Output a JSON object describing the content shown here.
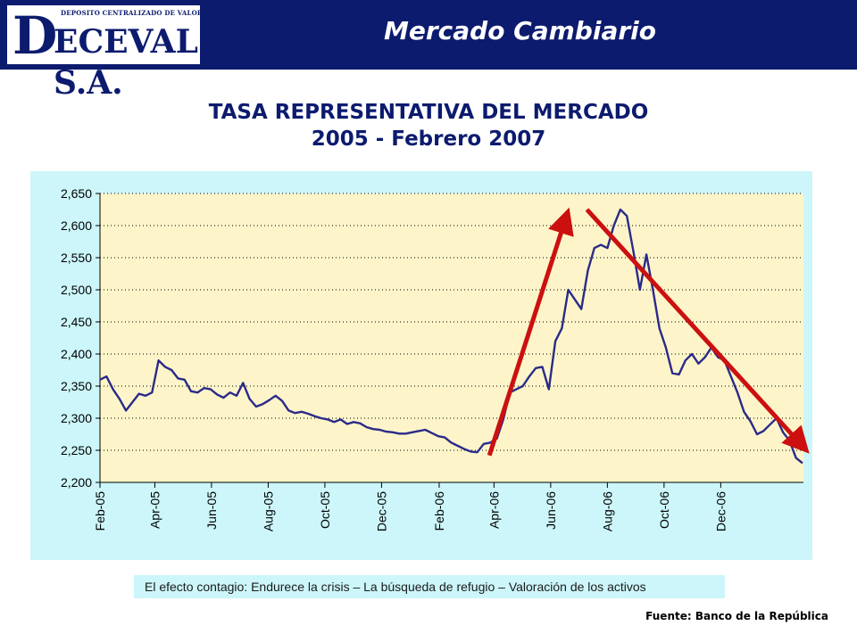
{
  "header": {
    "logo_small": "DEPOSITO CENTRALIZADO DE VALORES DE COLOMBIA",
    "logo_d": "D",
    "logo_text": "ECEVAL S.A.",
    "title": "Mercado Cambiario"
  },
  "titles": {
    "line1": "TASA REPRESENTATIVA DEL MERCADO",
    "line2": "2005 - Febrero 2007"
  },
  "note": "El efecto contagio: Endurece la crisis – La búsqueda de refugio – Valoración de los activos",
  "source": "Fuente: Banco de la República",
  "colors": {
    "header_bg": "#0c1b6e",
    "plot_bg": "#fdf5c9",
    "chart_bg": "#ccf6fa",
    "series": "#2b2a8a",
    "arrow": "#cc1010"
  },
  "chart_data": {
    "type": "line",
    "ylim": [
      2200,
      2650
    ],
    "y_ticks": [
      2200,
      2250,
      2300,
      2350,
      2400,
      2450,
      2500,
      2550,
      2600,
      2650
    ],
    "y_tick_labels": [
      "2,200",
      "2,250",
      "2,300",
      "2,350",
      "2,400",
      "2,450",
      "2,500",
      "2,550",
      "2,600",
      "2,650"
    ],
    "x_tick_labels": [
      "Feb-05",
      "Apr-05",
      "Jun-05",
      "Aug-05",
      "Oct-05",
      "Dec-05",
      "Feb-06",
      "Apr-06",
      "Jun-06",
      "Aug-06",
      "Oct-06",
      "Dec-06"
    ],
    "grid": true,
    "series": [
      {
        "x": [
          "2005-02-01",
          "2005-02-08",
          "2005-02-15",
          "2005-02-22",
          "2005-03-01",
          "2005-03-08",
          "2005-03-15",
          "2005-03-22",
          "2005-03-29",
          "2005-04-05",
          "2005-04-12",
          "2005-04-19",
          "2005-04-26",
          "2005-05-03",
          "2005-05-10",
          "2005-05-17",
          "2005-05-24",
          "2005-05-31",
          "2005-06-07",
          "2005-06-14",
          "2005-06-21",
          "2005-06-28",
          "2005-07-05",
          "2005-07-12",
          "2005-07-19",
          "2005-07-26",
          "2005-08-02",
          "2005-08-09",
          "2005-08-16",
          "2005-08-23",
          "2005-08-30",
          "2005-09-06",
          "2005-09-13",
          "2005-09-20",
          "2005-09-27",
          "2005-10-04",
          "2005-10-11",
          "2005-10-18",
          "2005-10-25",
          "2005-11-01",
          "2005-11-08",
          "2005-11-15",
          "2005-11-22",
          "2005-11-29",
          "2005-12-06",
          "2005-12-13",
          "2005-12-20",
          "2005-12-27",
          "2006-01-03",
          "2006-01-10",
          "2006-01-17",
          "2006-01-24",
          "2006-01-31",
          "2006-02-07",
          "2006-02-14",
          "2006-02-21",
          "2006-02-28",
          "2006-03-07",
          "2006-03-14",
          "2006-03-21",
          "2006-03-28",
          "2006-04-04",
          "2006-04-11",
          "2006-04-18",
          "2006-04-25",
          "2006-05-02",
          "2006-05-09",
          "2006-05-16",
          "2006-05-23",
          "2006-05-30",
          "2006-06-06",
          "2006-06-13",
          "2006-06-20",
          "2006-06-27",
          "2006-07-04",
          "2006-07-11",
          "2006-07-18",
          "2006-07-25",
          "2006-08-01",
          "2006-08-08",
          "2006-08-15",
          "2006-08-22",
          "2006-08-29",
          "2006-09-05",
          "2006-09-12",
          "2006-09-19",
          "2006-09-26",
          "2006-10-03",
          "2006-10-10",
          "2006-10-17",
          "2006-10-24",
          "2006-10-31",
          "2006-11-07",
          "2006-11-14",
          "2006-11-21",
          "2006-11-28",
          "2006-12-05",
          "2006-12-12",
          "2006-12-19",
          "2006-12-26",
          "2007-01-02",
          "2007-01-09",
          "2007-01-16",
          "2007-01-23",
          "2007-01-30",
          "2007-02-06",
          "2007-02-13",
          "2007-02-20",
          "2007-02-27"
        ],
        "y": [
          2360,
          2365,
          2345,
          2330,
          2312,
          2325,
          2338,
          2335,
          2340,
          2390,
          2380,
          2375,
          2362,
          2360,
          2342,
          2340,
          2347,
          2345,
          2337,
          2332,
          2340,
          2335,
          2355,
          2330,
          2318,
          2322,
          2328,
          2335,
          2327,
          2312,
          2308,
          2310,
          2307,
          2303,
          2300,
          2298,
          2294,
          2298,
          2291,
          2294,
          2292,
          2286,
          2283,
          2282,
          2279,
          2278,
          2276,
          2276,
          2278,
          2280,
          2282,
          2277,
          2272,
          2270,
          2262,
          2257,
          2252,
          2248,
          2247,
          2260,
          2262,
          2268,
          2298,
          2340,
          2345,
          2350,
          2365,
          2378,
          2380,
          2345,
          2420,
          2440,
          2500,
          2485,
          2470,
          2530,
          2565,
          2570,
          2565,
          2600,
          2625,
          2615,
          2560,
          2500,
          2555,
          2500,
          2440,
          2410,
          2370,
          2368,
          2390,
          2400,
          2385,
          2395,
          2410,
          2395,
          2390,
          2365,
          2340,
          2310,
          2295,
          2275,
          2280,
          2290,
          2300,
          2278,
          2265,
          2238,
          2230
        ]
      }
    ],
    "annotations": [
      {
        "type": "arrow",
        "from": [
          "2006-03-27",
          2242
        ],
        "to": [
          "2006-06-18",
          2615
        ]
      },
      {
        "type": "arrow",
        "from": [
          "2006-07-10",
          2625
        ],
        "to": [
          "2007-02-28",
          2255
        ]
      }
    ]
  }
}
